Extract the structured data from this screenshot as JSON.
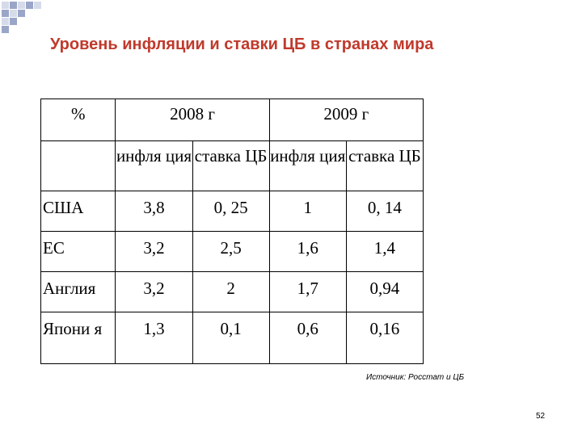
{
  "slide": {
    "title": "Уровень инфляции и ставки ЦБ в странах мира",
    "source": "Источник: Росстат и ЦБ",
    "page_number": "52"
  },
  "table": {
    "corner_label": "%",
    "year_headers": [
      "2008 г",
      "2009 г"
    ],
    "sub_headers": [
      "инфля ция",
      "ставка ЦБ",
      "инфля ция",
      "ставка ЦБ"
    ],
    "rows": [
      {
        "country": "США",
        "values": [
          "3,8",
          "0, 25",
          "1",
          "0, 14"
        ]
      },
      {
        "country": "ЕС",
        "values": [
          "3,2",
          "2,5",
          "1,6",
          "1,4"
        ]
      },
      {
        "country": "Англия",
        "values": [
          "3,2",
          "2",
          "1,7",
          "0,94"
        ]
      },
      {
        "country": "Япони я",
        "values": [
          "1,3",
          "0,1",
          "0,6",
          "0,16"
        ]
      }
    ]
  },
  "colors": {
    "title": "#c0392b",
    "decor_dark": "#9aa6c8",
    "decor_light": "#d6dbea"
  }
}
